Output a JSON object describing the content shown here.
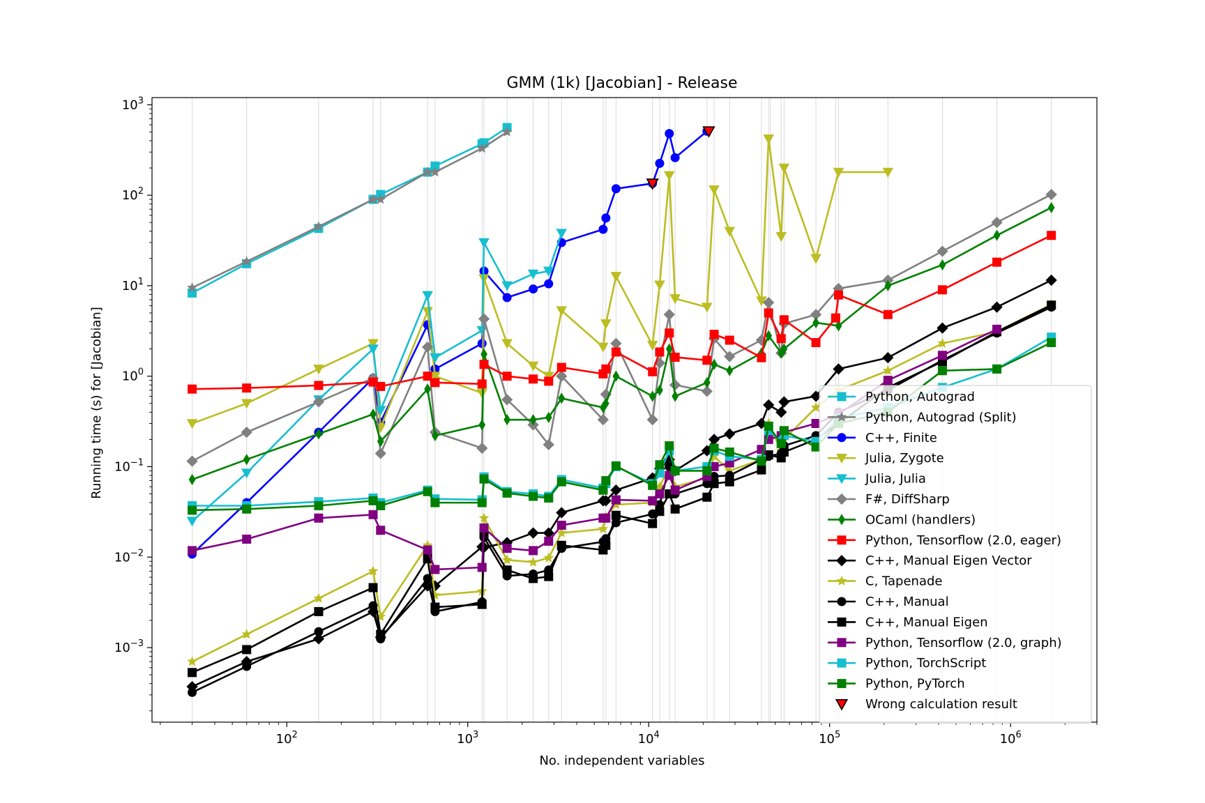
{
  "chart_data": {
    "type": "line",
    "title": "GMM (1k) [Jacobian] - Release",
    "xlabel": "No. independent variables",
    "ylabel": "Running time (s) for [Jacobian]",
    "x_scale": "log",
    "y_scale": "log",
    "xlim": [
      18,
      3000000
    ],
    "ylim": [
      0.00015,
      1200
    ],
    "x_ticks": [
      {
        "value": 100,
        "base": "10",
        "exp": "2"
      },
      {
        "value": 1000,
        "base": "10",
        "exp": "3"
      },
      {
        "value": 10000,
        "base": "10",
        "exp": "4"
      },
      {
        "value": 100000,
        "base": "10",
        "exp": "5"
      },
      {
        "value": 1000000,
        "base": "10",
        "exp": "6"
      }
    ],
    "y_ticks": [
      {
        "value": 0.001,
        "base": "10",
        "exp": "−3"
      },
      {
        "value": 0.01,
        "base": "10",
        "exp": "−2"
      },
      {
        "value": 0.1,
        "base": "10",
        "exp": "−1"
      },
      {
        "value": 1,
        "base": "10",
        "exp": "0"
      },
      {
        "value": 10,
        "base": "10",
        "exp": "1"
      },
      {
        "value": 100,
        "base": "10",
        "exp": "2"
      },
      {
        "value": 1000,
        "base": "10",
        "exp": "3"
      }
    ],
    "grid": "vertical lines at each measured x",
    "vgrid_x": [
      30,
      60,
      150,
      300,
      330,
      600,
      660,
      1200,
      1230,
      1650,
      2300,
      2800,
      3300,
      5600,
      5800,
      6600,
      10500,
      11500,
      13000,
      14000,
      21000,
      23000,
      28000,
      42000,
      46000,
      47000,
      54000,
      56000,
      84000,
      108000,
      112000,
      210000,
      420000,
      840000,
      1680000
    ],
    "legend_position": "lower right",
    "series": [
      {
        "name": "Python, Autograd",
        "color": "#17becf",
        "marker": "square",
        "x": [
          30,
          60,
          150,
          300,
          330,
          600,
          660,
          1200,
          1230,
          1650
        ],
        "y": [
          8.3,
          17.5,
          43,
          90,
          102,
          180,
          210,
          370,
          380,
          560
        ]
      },
      {
        "name": "Python, Autograd (Split)",
        "color": "#808080",
        "marker": "star",
        "x": [
          30,
          60,
          150,
          300,
          330,
          600,
          660,
          1200,
          1650
        ],
        "y": [
          9.5,
          18.5,
          45,
          90,
          90,
          180,
          180,
          330,
          500
        ]
      },
      {
        "name": "C++, Finite",
        "color": "#0000ff",
        "marker": "circle",
        "x": [
          30,
          60,
          150,
          300,
          330,
          600,
          660,
          1200,
          1230,
          1650,
          2300,
          2800,
          3300,
          5600,
          5800,
          6600,
          10500,
          11500,
          13000,
          14000,
          21000
        ],
        "y": [
          0.0108,
          0.04,
          0.24,
          0.95,
          0.31,
          3.7,
          1.2,
          2.3,
          14.5,
          7.4,
          9.2,
          10.5,
          30,
          42,
          56,
          118,
          135,
          225,
          480,
          260,
          510
        ]
      },
      {
        "name": "Julia, Zygote",
        "color": "#bcbd22",
        "marker": "triangle-down",
        "x": [
          30,
          60,
          150,
          300,
          330,
          600,
          660,
          1200,
          1230,
          1650,
          2300,
          2800,
          3300,
          5600,
          5800,
          6600,
          10500,
          11500,
          13000,
          14000,
          21000,
          23000,
          28000,
          42000,
          46000,
          54000,
          56000,
          84000,
          112000,
          210000
        ],
        "y": [
          0.3,
          0.5,
          1.2,
          2.3,
          0.27,
          5.2,
          1.0,
          0.65,
          12,
          2.3,
          1.3,
          1.0,
          5.3,
          2.1,
          3.8,
          12.7,
          2.2,
          10.2,
          165,
          7.2,
          5.8,
          115,
          40,
          6.8,
          420,
          35,
          200,
          20,
          180,
          180
        ]
      },
      {
        "name": "Julia, Julia",
        "color": "#17becf",
        "marker": "triangle-down",
        "x": [
          30,
          60,
          150,
          300,
          330,
          600,
          660,
          1200,
          1230,
          1650,
          2300,
          2800,
          3300
        ],
        "y": [
          0.025,
          0.085,
          0.55,
          2.0,
          0.42,
          7.8,
          1.6,
          3.2,
          30,
          10,
          13.5,
          14.5,
          38
        ]
      },
      {
        "name": "F#, DiffSharp",
        "color": "#808080",
        "marker": "diamond",
        "x": [
          30,
          60,
          150,
          300,
          330,
          600,
          660,
          1200,
          1230,
          1650,
          2300,
          2800,
          3300,
          5600,
          5800,
          6600,
          10500,
          11500,
          13000,
          14000,
          21000,
          23000,
          28000,
          42000,
          46000,
          54000,
          56000,
          84000,
          112000,
          210000,
          420000,
          840000,
          1680000
        ],
        "y": [
          0.115,
          0.24,
          0.52,
          0.95,
          0.14,
          2.1,
          0.24,
          0.16,
          4.3,
          0.55,
          0.29,
          0.175,
          1.0,
          0.33,
          0.63,
          2.3,
          0.33,
          1.4,
          4.8,
          0.8,
          0.68,
          2.6,
          1.65,
          2.5,
          6.5,
          1.8,
          3.8,
          4.8,
          9.3,
          11.5,
          24,
          50,
          102
        ]
      },
      {
        "name": "OCaml (handlers)",
        "color": "#008000",
        "marker": "thin-diamond",
        "x": [
          30,
          60,
          150,
          300,
          330,
          600,
          660,
          1200,
          1230,
          1650,
          2300,
          2800,
          3300,
          5600,
          5800,
          6600,
          10500,
          11500,
          13000,
          14000,
          21000,
          23000,
          28000,
          42000,
          46000,
          54000,
          56000,
          84000,
          112000,
          210000,
          420000,
          840000,
          1680000
        ],
        "y": [
          0.072,
          0.12,
          0.23,
          0.38,
          0.19,
          0.72,
          0.22,
          0.29,
          1.75,
          0.33,
          0.33,
          0.35,
          0.57,
          0.45,
          0.5,
          1.0,
          0.6,
          0.7,
          2.0,
          0.6,
          0.85,
          1.35,
          1.15,
          1.8,
          2.8,
          1.8,
          2.0,
          3.9,
          3.6,
          10,
          17,
          36,
          73
        ]
      },
      {
        "name": "Python, Tensorflow (2.0, eager)",
        "color": "#ff0000",
        "marker": "square",
        "x": [
          30,
          60,
          150,
          300,
          330,
          600,
          660,
          1200,
          1230,
          1650,
          2300,
          2800,
          3300,
          5600,
          5800,
          6600,
          10500,
          11500,
          13000,
          14000,
          21000,
          23000,
          28000,
          42000,
          46000,
          54000,
          56000,
          84000,
          108000,
          112000,
          210000,
          420000,
          840000,
          1680000
        ],
        "y": [
          0.72,
          0.74,
          0.79,
          0.86,
          0.77,
          1.0,
          0.85,
          0.82,
          1.35,
          1.0,
          0.93,
          0.88,
          1.25,
          1.06,
          1.2,
          1.85,
          1.12,
          1.85,
          3.0,
          1.62,
          1.5,
          2.9,
          2.5,
          1.6,
          5.0,
          2.6,
          4.2,
          2.35,
          4.4,
          7.9,
          4.8,
          9.0,
          18.2,
          36
        ]
      },
      {
        "name": "C++, Manual Eigen Vector",
        "color": "#000000",
        "marker": "diamond",
        "x": [
          30,
          60,
          150,
          300,
          330,
          600,
          660,
          1200,
          1230,
          1650,
          2300,
          2800,
          3300,
          5600,
          5800,
          6600,
          10500,
          11500,
          13000,
          14000,
          21000,
          23000,
          28000,
          42000,
          46000,
          54000,
          56000,
          84000,
          112000,
          210000,
          420000,
          840000,
          1680000
        ],
        "y": [
          0.00037,
          0.0007,
          0.00125,
          0.0025,
          0.0013,
          0.0048,
          0.0048,
          0.013,
          0.0128,
          0.0145,
          0.0185,
          0.0185,
          0.031,
          0.042,
          0.042,
          0.055,
          0.075,
          0.095,
          0.12,
          0.09,
          0.15,
          0.2,
          0.23,
          0.3,
          0.48,
          0.4,
          0.52,
          0.6,
          1.2,
          1.6,
          3.4,
          5.8,
          11.5
        ]
      },
      {
        "name": "C, Tapenade",
        "color": "#bcbd22",
        "marker": "star",
        "x": [
          30,
          60,
          150,
          300,
          330,
          600,
          660,
          1200,
          1230,
          1650,
          2300,
          2800,
          3300,
          5600,
          5800,
          6600,
          10500,
          11500,
          13000,
          14000,
          21000,
          23000,
          28000,
          42000,
          46000,
          54000,
          56000,
          84000,
          112000,
          210000,
          420000,
          840000,
          1680000
        ],
        "y": [
          0.0007,
          0.0014,
          0.0035,
          0.007,
          0.0022,
          0.0135,
          0.0038,
          0.0042,
          0.027,
          0.0093,
          0.0088,
          0.0098,
          0.0185,
          0.0205,
          0.028,
          0.038,
          0.04,
          0.06,
          0.1,
          0.06,
          0.075,
          0.13,
          0.09,
          0.12,
          0.3,
          0.15,
          0.2,
          0.45,
          0.7,
          1.15,
          2.3,
          3.1,
          6.2
        ]
      },
      {
        "name": "C++, Manual",
        "color": "#000000",
        "marker": "circle",
        "x": [
          30,
          60,
          150,
          300,
          330,
          600,
          660,
          1200,
          1230,
          1650,
          2300,
          2800,
          3300,
          5600,
          5800,
          6600,
          10500,
          11500,
          13000,
          14000,
          21000,
          23000,
          28000,
          42000,
          46000,
          54000,
          56000,
          84000,
          112000,
          210000,
          420000,
          840000,
          1680000
        ],
        "y": [
          0.00032,
          0.00062,
          0.0015,
          0.0029,
          0.00125,
          0.0058,
          0.0025,
          0.0032,
          0.0165,
          0.0062,
          0.0065,
          0.0072,
          0.0125,
          0.0148,
          0.016,
          0.024,
          0.03,
          0.038,
          0.1,
          0.05,
          0.065,
          0.078,
          0.08,
          0.12,
          0.13,
          0.14,
          0.17,
          0.22,
          0.4,
          0.7,
          1.5,
          3.0,
          5.8
        ]
      },
      {
        "name": "C++, Manual Eigen",
        "color": "#000000",
        "marker": "square",
        "x": [
          30,
          60,
          150,
          300,
          330,
          600,
          660,
          1200,
          1230,
          1650,
          2300,
          2800,
          3300,
          5600,
          5800,
          6600,
          10500,
          11500,
          13000,
          14000,
          21000,
          23000,
          28000,
          42000,
          46000,
          54000,
          56000,
          84000,
          112000,
          210000,
          420000,
          840000,
          1680000
        ],
        "y": [
          0.00053,
          0.00095,
          0.0025,
          0.0046,
          0.0014,
          0.0096,
          0.0028,
          0.003,
          0.0185,
          0.0072,
          0.0058,
          0.0061,
          0.0135,
          0.012,
          0.0135,
          0.029,
          0.0235,
          0.032,
          0.05,
          0.034,
          0.046,
          0.065,
          0.068,
          0.092,
          0.135,
          0.125,
          0.145,
          0.2,
          0.3,
          0.75,
          1.45,
          3.1,
          6.1
        ]
      },
      {
        "name": "Python, Tensorflow (2.0, graph)",
        "color": "#800080",
        "marker": "square",
        "x": [
          30,
          60,
          150,
          300,
          330,
          600,
          660,
          1200,
          1230,
          1650,
          2300,
          2800,
          3300,
          5600,
          5800,
          6600,
          10500,
          11500,
          13000,
          14000,
          21000,
          23000,
          28000,
          42000,
          46000,
          54000,
          56000,
          84000,
          112000,
          210000,
          420000,
          840000
        ],
        "y": [
          0.0118,
          0.0158,
          0.027,
          0.0295,
          0.0198,
          0.012,
          0.0073,
          0.0077,
          0.021,
          0.0125,
          0.0118,
          0.015,
          0.0225,
          0.027,
          0.027,
          0.043,
          0.042,
          0.05,
          0.08,
          0.055,
          0.078,
          0.1,
          0.11,
          0.155,
          0.2,
          0.22,
          0.24,
          0.3,
          0.38,
          0.9,
          1.7,
          3.3
        ]
      },
      {
        "name": "Python, TorchScript",
        "color": "#17becf",
        "marker": "square",
        "x": [
          30,
          60,
          150,
          300,
          330,
          600,
          660,
          1200,
          1230,
          1650,
          2300,
          2800,
          3300,
          5600,
          5800,
          6600,
          10500,
          11500,
          13000,
          14000,
          21000,
          23000,
          28000,
          42000,
          46000,
          54000,
          56000,
          84000,
          112000,
          210000,
          420000,
          840000,
          1680000
        ],
        "y": [
          0.037,
          0.037,
          0.041,
          0.045,
          0.04,
          0.055,
          0.044,
          0.043,
          0.077,
          0.053,
          0.05,
          0.047,
          0.072,
          0.058,
          0.065,
          0.1,
          0.065,
          0.085,
          0.15,
          0.09,
          0.1,
          0.15,
          0.13,
          0.12,
          0.25,
          0.19,
          0.22,
          0.19,
          0.34,
          0.45,
          0.75,
          1.2,
          2.7
        ]
      },
      {
        "name": "Python, PyTorch",
        "color": "#008000",
        "marker": "square",
        "x": [
          30,
          60,
          150,
          300,
          330,
          600,
          660,
          1200,
          1230,
          1650,
          2300,
          2800,
          3300,
          5600,
          5800,
          6600,
          10500,
          11500,
          13000,
          14000,
          21000,
          23000,
          28000,
          42000,
          46000,
          54000,
          56000,
          84000,
          112000,
          210000,
          420000,
          840000,
          1680000
        ],
        "y": [
          0.033,
          0.034,
          0.037,
          0.042,
          0.037,
          0.053,
          0.04,
          0.04,
          0.073,
          0.051,
          0.047,
          0.045,
          0.068,
          0.055,
          0.07,
          0.102,
          0.062,
          0.105,
          0.17,
          0.09,
          0.09,
          0.16,
          0.145,
          0.115,
          0.28,
          0.18,
          0.25,
          0.165,
          0.3,
          0.4,
          1.15,
          1.2,
          2.35
        ]
      },
      {
        "name": "Wrong calculation result",
        "color": "#ff0000",
        "marker": "triangle-down-outlined",
        "x": [
          10500,
          21500
        ],
        "y": [
          135,
          510
        ]
      }
    ]
  }
}
